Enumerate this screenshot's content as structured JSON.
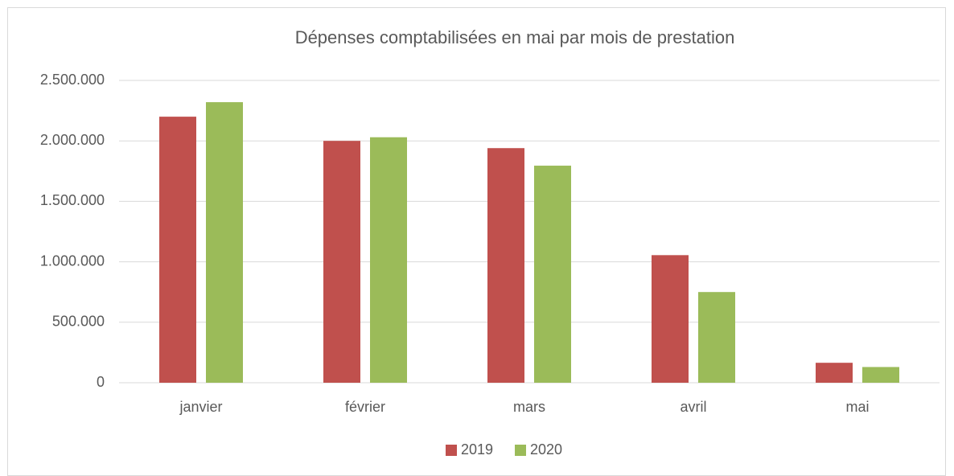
{
  "chart_data": {
    "type": "bar",
    "title": "Dépenses comptabilisées en mai par mois de prestation",
    "categories": [
      "janvier",
      "février",
      "mars",
      "avril",
      "mai"
    ],
    "series": [
      {
        "name": "2019",
        "color": "#c0504d",
        "values": [
          2200000,
          2000000,
          1940000,
          1055000,
          165000
        ]
      },
      {
        "name": "2020",
        "color": "#9bbb59",
        "values": [
          2320000,
          2030000,
          1795000,
          750000,
          130000
        ]
      }
    ],
    "ylim": [
      0,
      2500000
    ],
    "yticks": [
      0,
      {
        "value": 500000,
        "label": "500.000"
      },
      {
        "value": 1000000,
        "label": "1.000.000"
      },
      {
        "value": 1500000,
        "label": "1.500.000"
      },
      {
        "value": 2000000,
        "label": "2.000.000"
      },
      {
        "value": 2500000,
        "label": "2.500.000"
      }
    ],
    "grid": true,
    "legend": "bottom"
  }
}
